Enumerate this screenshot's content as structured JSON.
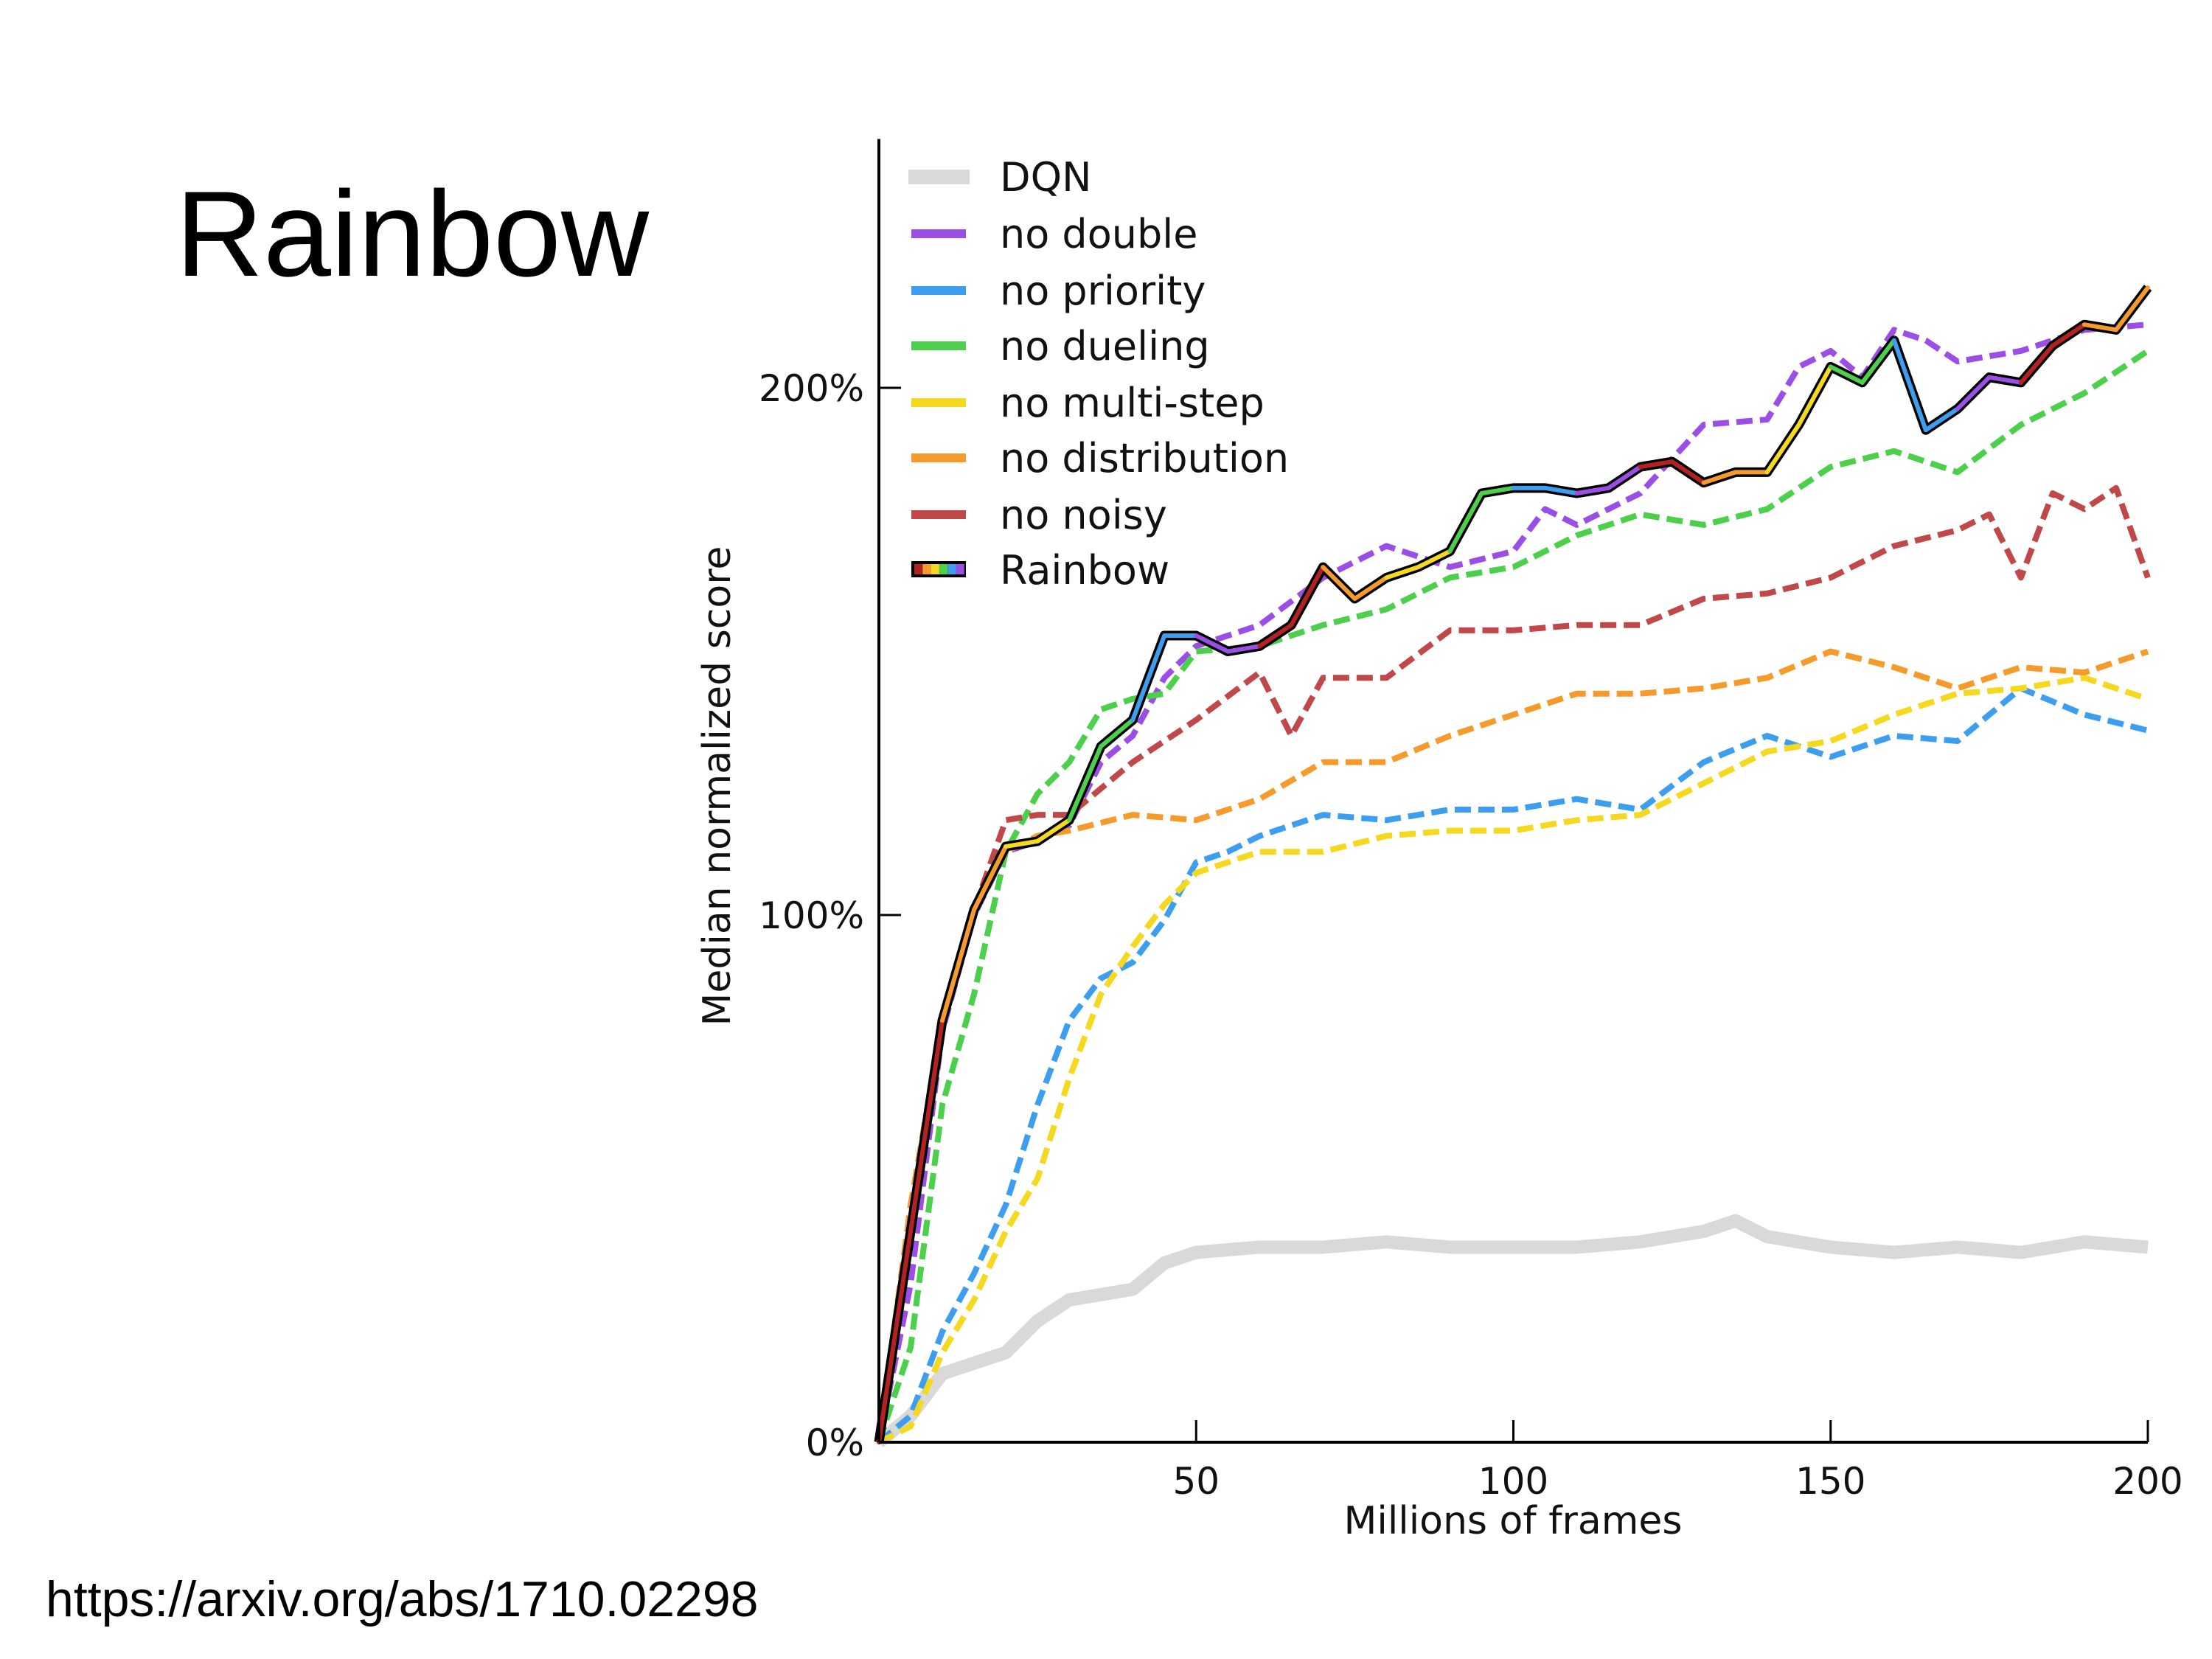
{
  "slide": {
    "title": "Rainbow",
    "source": "https://arxiv.org/abs/1710.02298"
  },
  "chart_data": {
    "type": "line",
    "title": "",
    "xlabel": "Millions of frames",
    "ylabel": "Median normalized score",
    "xlim": [
      0,
      200
    ],
    "ylim": [
      0,
      250
    ],
    "xticks": [
      50,
      100,
      150,
      200
    ],
    "xtick_labels": [
      "50",
      "100",
      "150",
      "200"
    ],
    "yticks": [
      0,
      100,
      200
    ],
    "ytick_labels": [
      "0%",
      "100%",
      "200%"
    ],
    "grid": false,
    "legend_position": "top-left",
    "series": [
      {
        "name": "DQN",
        "color": "#d9d9d9",
        "style": "solid-thick",
        "x": [
          0,
          5,
          10,
          20,
          25,
          30,
          40,
          45,
          50,
          60,
          70,
          80,
          90,
          100,
          110,
          120,
          130,
          135,
          140,
          150,
          160,
          170,
          180,
          190,
          200
        ],
        "y": [
          0,
          5,
          13,
          17,
          23,
          27,
          29,
          34,
          36,
          37,
          37,
          38,
          37,
          37,
          37,
          38,
          40,
          42,
          39,
          37,
          36,
          37,
          36,
          38,
          37
        ]
      },
      {
        "name": "no double",
        "color": "#9b4ee6",
        "style": "dashed",
        "x": [
          0,
          5,
          10,
          15,
          20,
          25,
          30,
          35,
          40,
          45,
          50,
          60,
          70,
          80,
          90,
          100,
          105,
          110,
          120,
          130,
          140,
          145,
          150,
          155,
          160,
          165,
          170,
          180,
          190,
          200
        ],
        "y": [
          0,
          30,
          78,
          100,
          112,
          114,
          117,
          129,
          134,
          145,
          151,
          155,
          164,
          170,
          166,
          169,
          177,
          174,
          180,
          193,
          194,
          204,
          207,
          202,
          211,
          209,
          205,
          207,
          211,
          212
        ]
      },
      {
        "name": "no priority",
        "color": "#3d9ef0",
        "style": "dashed",
        "x": [
          0,
          5,
          10,
          15,
          20,
          25,
          30,
          35,
          40,
          45,
          50,
          55,
          60,
          70,
          80,
          90,
          100,
          110,
          120,
          130,
          140,
          150,
          160,
          170,
          180,
          190,
          200
        ],
        "y": [
          0,
          5,
          21,
          32,
          45,
          64,
          80,
          88,
          91,
          99,
          110,
          112,
          115,
          119,
          118,
          120,
          120,
          122,
          120,
          129,
          134,
          130,
          134,
          133,
          143,
          138,
          135
        ]
      },
      {
        "name": "no dueling",
        "color": "#4cd04c",
        "style": "dashed",
        "x": [
          0,
          5,
          10,
          15,
          20,
          25,
          30,
          35,
          40,
          45,
          50,
          60,
          70,
          80,
          90,
          100,
          110,
          120,
          130,
          140,
          150,
          160,
          170,
          180,
          190,
          200
        ],
        "y": [
          0,
          18,
          64,
          85,
          112,
          123,
          129,
          139,
          141,
          142,
          150,
          151,
          155,
          158,
          164,
          166,
          172,
          176,
          174,
          177,
          185,
          188,
          184,
          193,
          199,
          207
        ]
      },
      {
        "name": "no multi-step",
        "color": "#f5d820",
        "style": "dashed",
        "x": [
          0,
          5,
          10,
          15,
          20,
          25,
          30,
          35,
          40,
          45,
          50,
          55,
          60,
          70,
          80,
          90,
          100,
          110,
          120,
          130,
          140,
          150,
          160,
          170,
          180,
          190,
          200
        ],
        "y": [
          0,
          3,
          17,
          27,
          40,
          50,
          69,
          85,
          94,
          102,
          108,
          110,
          112,
          112,
          115,
          116,
          116,
          118,
          119,
          125,
          131,
          133,
          138,
          142,
          143,
          145,
          141
        ]
      },
      {
        "name": "no distribution",
        "color": "#f79a2c",
        "style": "dashed",
        "x": [
          0,
          5,
          10,
          15,
          20,
          25,
          30,
          40,
          50,
          60,
          70,
          80,
          90,
          100,
          110,
          120,
          130,
          140,
          150,
          160,
          170,
          180,
          190,
          200
        ],
        "y": [
          0,
          45,
          80,
          101,
          112,
          115,
          116,
          119,
          118,
          122,
          129,
          129,
          134,
          138,
          142,
          142,
          143,
          145,
          150,
          147,
          143,
          147,
          146,
          150
        ]
      },
      {
        "name": "no noisy",
        "color": "#c04848",
        "style": "dashed",
        "x": [
          0,
          5,
          10,
          15,
          20,
          25,
          30,
          40,
          50,
          60,
          65,
          70,
          80,
          90,
          100,
          110,
          120,
          130,
          140,
          150,
          160,
          170,
          175,
          180,
          185,
          190,
          195,
          200
        ],
        "y": [
          0,
          40,
          80,
          101,
          118,
          119,
          119,
          129,
          137,
          146,
          134,
          145,
          145,
          154,
          154,
          155,
          155,
          160,
          161,
          164,
          170,
          173,
          176,
          164,
          180,
          177,
          181,
          164
        ]
      },
      {
        "name": "Rainbow",
        "color": "#000000",
        "style": "rainbow",
        "segment_colors": [
          "#b22222",
          "#f79a2c",
          "#f5d820",
          "#4cd04c",
          "#3d9ef0",
          "#9b4ee6"
        ],
        "x": [
          0,
          5,
          10,
          15,
          20,
          25,
          30,
          35,
          40,
          45,
          50,
          55,
          60,
          65,
          70,
          75,
          80,
          85,
          90,
          95,
          100,
          105,
          110,
          115,
          120,
          125,
          130,
          135,
          140,
          145,
          150,
          155,
          160,
          165,
          170,
          175,
          180,
          185,
          190,
          195,
          200
        ],
        "y": [
          0,
          40,
          80,
          101,
          113,
          114,
          118,
          132,
          137,
          153,
          153,
          150,
          151,
          155,
          166,
          160,
          164,
          166,
          169,
          180,
          181,
          181,
          180,
          181,
          185,
          186,
          182,
          184,
          184,
          193,
          204,
          201,
          209,
          192,
          196,
          202,
          201,
          208,
          212,
          211,
          219
        ]
      }
    ]
  }
}
